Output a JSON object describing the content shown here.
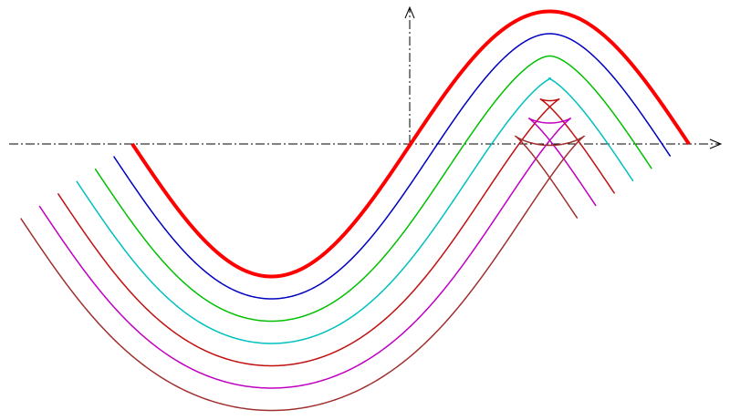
{
  "curves": {
    "colors": [
      "#ff0000",
      "#0000c0",
      "#00c000",
      "#00c0c0",
      "#c01010",
      "#c000c0",
      "#a03030"
    ]
  }
}
